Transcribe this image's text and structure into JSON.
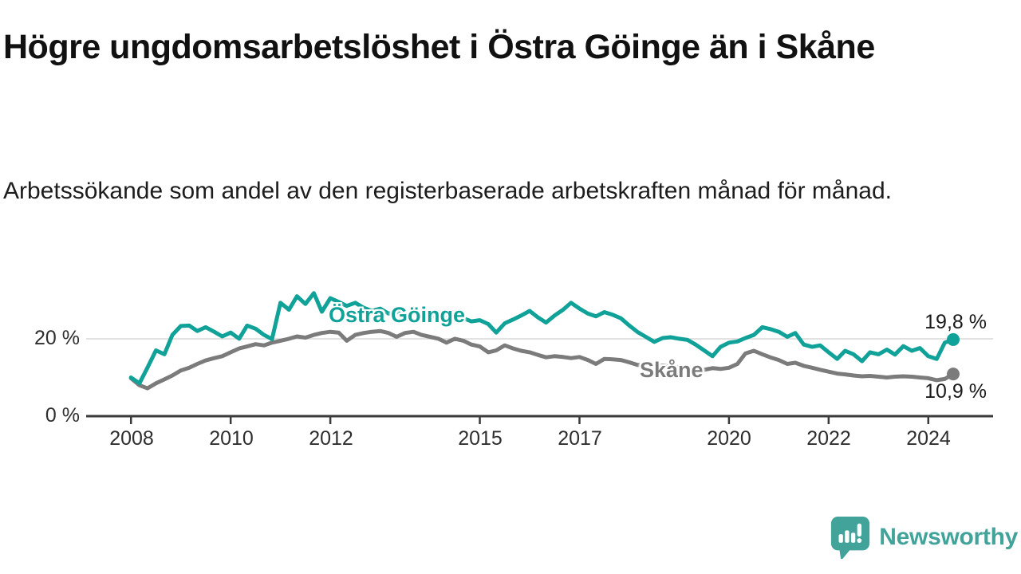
{
  "chart_data": {
    "type": "line",
    "title": "Högre ungdomsarbetslöshet i Östra Göinge än i Skåne",
    "subtitle": "Arbetssökande som andel av den registerbaserade arbetskraften månad för månad.",
    "unit": "%",
    "xlim": [
      2007.1,
      2025.3
    ],
    "ylim": [
      0,
      34
    ],
    "grid_y_values": [
      20
    ],
    "legend_position": "inline-line-labels",
    "x": [
      2008.0,
      2008.17,
      2008.33,
      2008.5,
      2008.67,
      2008.83,
      2009.0,
      2009.17,
      2009.33,
      2009.5,
      2009.67,
      2009.83,
      2010.0,
      2010.17,
      2010.33,
      2010.5,
      2010.67,
      2010.83,
      2011.0,
      2011.17,
      2011.33,
      2011.5,
      2011.67,
      2011.83,
      2012.0,
      2012.17,
      2012.33,
      2012.5,
      2012.67,
      2012.83,
      2013.0,
      2013.17,
      2013.33,
      2013.5,
      2013.67,
      2013.83,
      2014.0,
      2014.17,
      2014.33,
      2014.5,
      2014.67,
      2014.83,
      2015.0,
      2015.17,
      2015.33,
      2015.5,
      2015.67,
      2015.83,
      2016.0,
      2016.17,
      2016.33,
      2016.5,
      2016.67,
      2016.83,
      2017.0,
      2017.17,
      2017.33,
      2017.5,
      2017.67,
      2017.83,
      2018.0,
      2018.17,
      2018.33,
      2018.5,
      2018.67,
      2018.83,
      2019.0,
      2019.17,
      2019.33,
      2019.5,
      2019.67,
      2019.83,
      2020.0,
      2020.17,
      2020.33,
      2020.5,
      2020.67,
      2020.83,
      2021.0,
      2021.17,
      2021.33,
      2021.5,
      2021.67,
      2021.83,
      2022.0,
      2022.17,
      2022.33,
      2022.5,
      2022.67,
      2022.83,
      2023.0,
      2023.17,
      2023.33,
      2023.5,
      2023.67,
      2023.83,
      2024.0,
      2024.17,
      2024.33,
      2024.5
    ],
    "series": [
      {
        "name": "Östra Göinge",
        "color": "#10a298",
        "end_value": 19.8,
        "end_label": "19,8 %",
        "values": [
          10.0,
          8.5,
          12.5,
          17.0,
          16.0,
          21.0,
          23.3,
          23.4,
          22.0,
          23.0,
          21.8,
          20.6,
          21.6,
          20.0,
          23.4,
          22.6,
          21.0,
          19.9,
          29.3,
          27.5,
          31.0,
          29.0,
          31.8,
          27.0,
          30.5,
          29.5,
          28.5,
          29.3,
          28.0,
          27.2,
          27.8,
          26.5,
          27.0,
          26.2,
          26.8,
          25.8,
          26.3,
          25.2,
          25.8,
          24.8,
          25.3,
          24.5,
          24.8,
          23.8,
          21.6,
          24.0,
          25.0,
          26.0,
          27.2,
          25.5,
          24.2,
          26.0,
          27.5,
          29.3,
          27.8,
          26.5,
          25.8,
          26.9,
          26.2,
          25.3,
          23.4,
          21.7,
          20.5,
          19.2,
          20.2,
          20.4,
          20.0,
          19.7,
          18.5,
          17.0,
          15.5,
          17.9,
          19.0,
          19.3,
          20.2,
          21.0,
          23.0,
          22.5,
          21.8,
          20.5,
          21.5,
          18.5,
          17.9,
          18.3,
          16.5,
          14.8,
          16.9,
          16.0,
          14.2,
          16.5,
          16.0,
          17.2,
          15.9,
          18.1,
          16.9,
          17.6,
          15.5,
          14.8,
          19.0,
          19.8
        ]
      },
      {
        "name": "Skåne",
        "color": "#7b7b7b",
        "end_value": 10.9,
        "end_label": "10,9 %",
        "values": [
          9.8,
          8.0,
          7.2,
          8.5,
          9.5,
          10.5,
          11.8,
          12.5,
          13.5,
          14.4,
          15.0,
          15.5,
          16.5,
          17.5,
          18.0,
          18.6,
          18.3,
          19.0,
          19.5,
          20.0,
          20.6,
          20.3,
          21.0,
          21.5,
          21.8,
          21.6,
          19.5,
          21.0,
          21.5,
          21.8,
          22.0,
          21.5,
          20.5,
          21.5,
          21.8,
          21.0,
          20.5,
          20.0,
          19.0,
          20.0,
          19.5,
          18.5,
          18.0,
          16.5,
          17.0,
          18.3,
          17.5,
          16.9,
          16.5,
          15.8,
          15.2,
          15.5,
          15.3,
          15.0,
          15.3,
          14.5,
          13.5,
          14.8,
          14.7,
          14.5,
          13.9,
          13.2,
          13.4,
          13.2,
          13.0,
          12.8,
          12.6,
          12.4,
          12.2,
          12.0,
          12.4,
          12.2,
          12.5,
          13.5,
          16.2,
          16.9,
          16.0,
          15.2,
          14.5,
          13.5,
          13.8,
          13.0,
          12.5,
          12.0,
          11.5,
          11.0,
          10.8,
          10.5,
          10.3,
          10.4,
          10.2,
          10.0,
          10.2,
          10.3,
          10.2,
          10.0,
          9.8,
          9.3,
          9.6,
          10.9
        ]
      }
    ],
    "x_ticks": [
      {
        "year": 2008,
        "label": "2008"
      },
      {
        "year": 2010,
        "label": "2010"
      },
      {
        "year": 2012,
        "label": "2012"
      },
      {
        "year": 2015,
        "label": "2015"
      },
      {
        "year": 2017,
        "label": "2017"
      },
      {
        "year": 2020,
        "label": "2020"
      },
      {
        "year": 2022,
        "label": "2022"
      },
      {
        "year": 2024,
        "label": "2024"
      }
    ],
    "y_ticks": [
      {
        "value": 20,
        "label": "20 %"
      },
      {
        "value": 0,
        "label": "0 %"
      }
    ]
  },
  "colors": {
    "accent_teal": "#10a298",
    "series_gray": "#7b7b7b",
    "axis": "#3a3a3a",
    "gridline": "#d8d8d8",
    "brand_teal": "#41a39a"
  },
  "footer": {
    "brand": "Newsworthy"
  }
}
